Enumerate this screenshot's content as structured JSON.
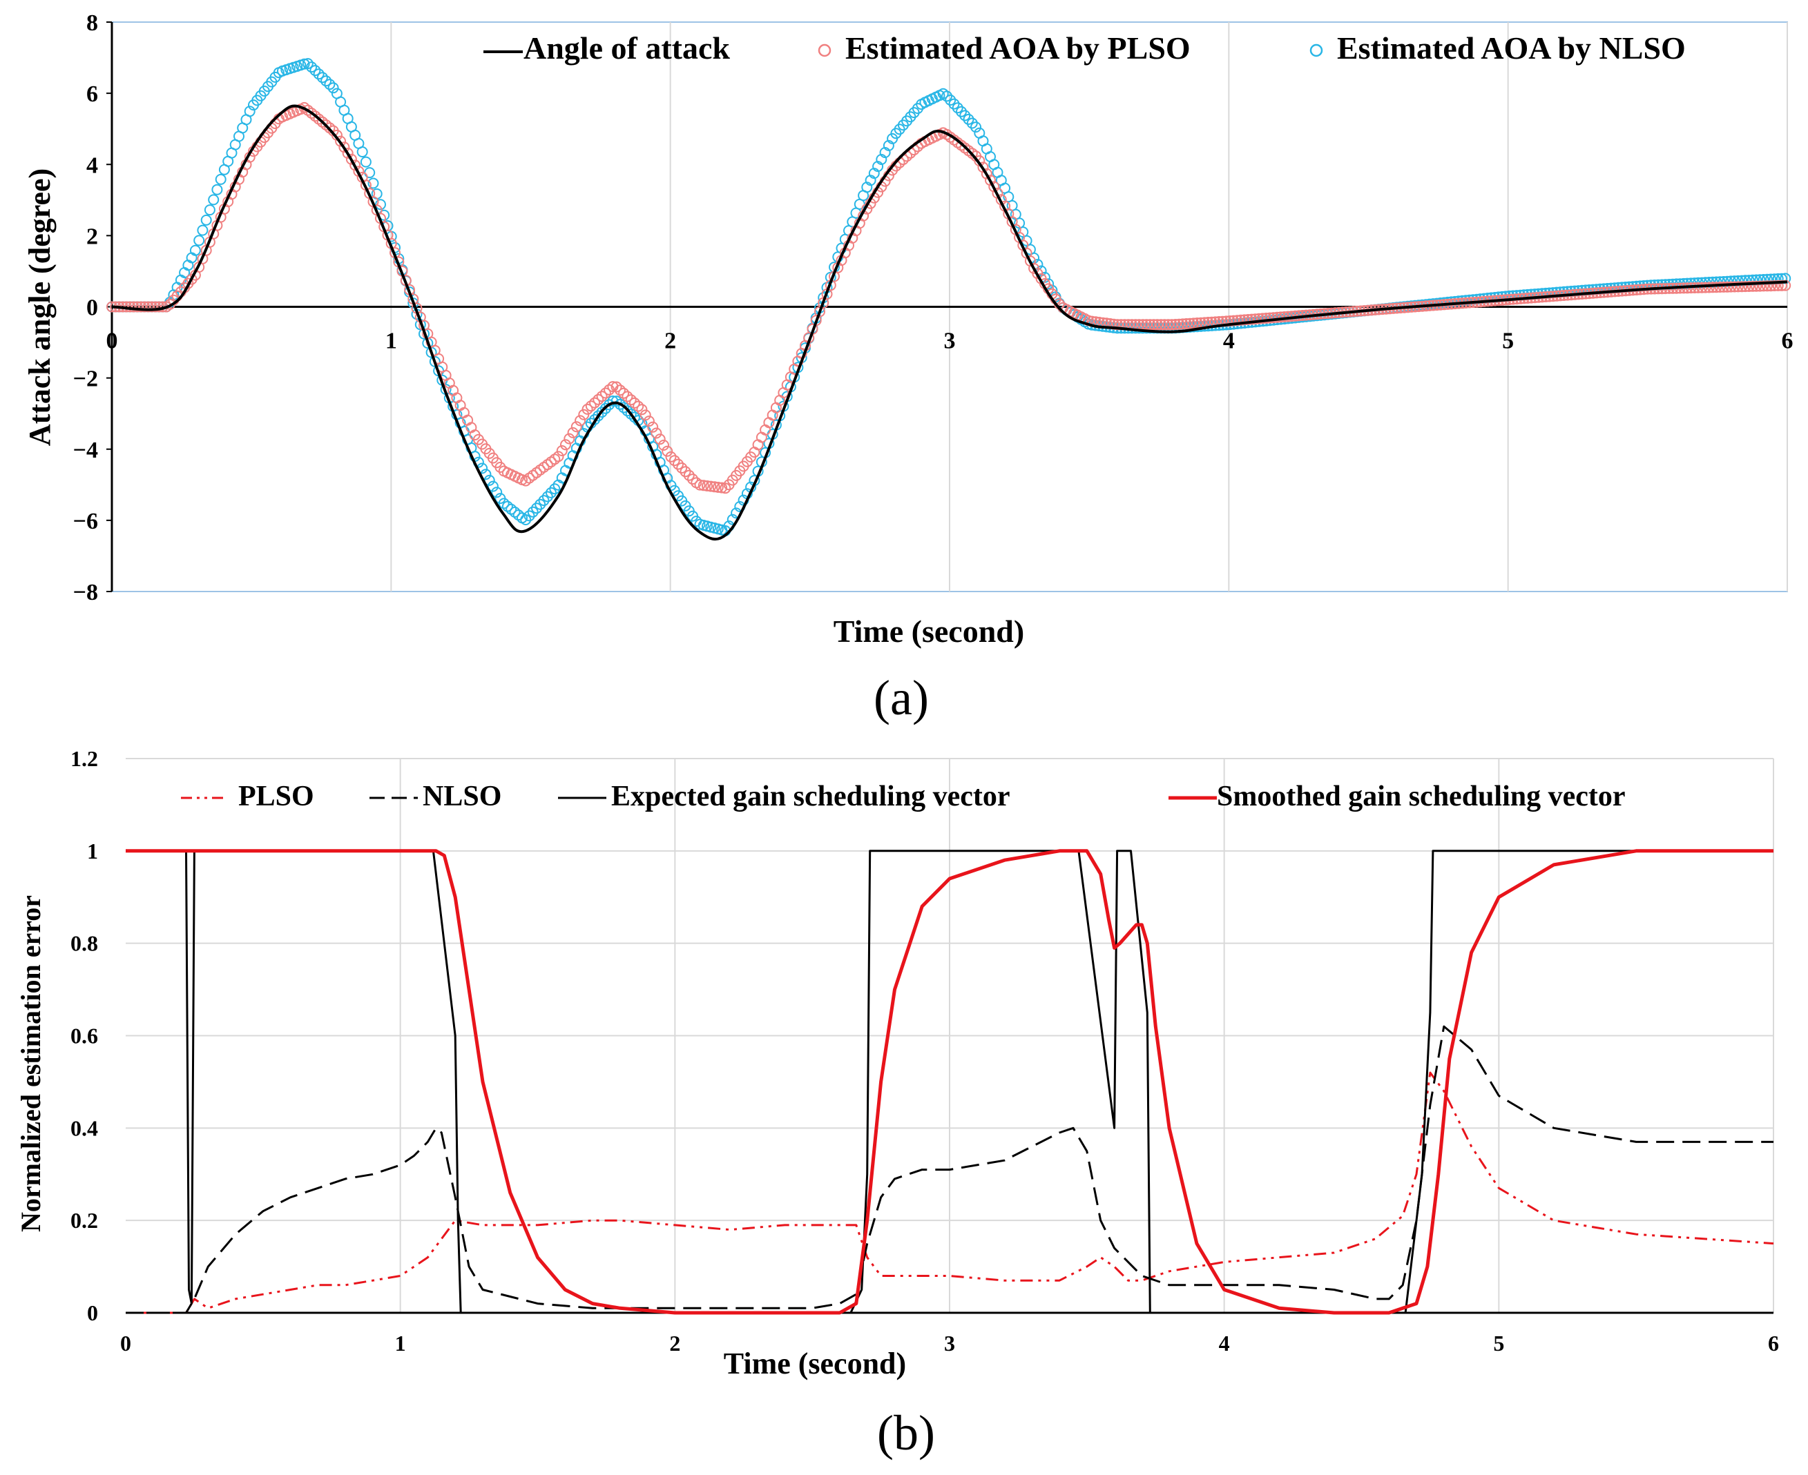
{
  "colors": {
    "black": "#000000",
    "red": "#e8141b",
    "pink_marker": "#f08080",
    "cyan_marker": "#29b6e6",
    "grid": "#d9d9d9",
    "frame": "#9dc3e6"
  },
  "chart_data": [
    {
      "id": "a",
      "type": "line",
      "panel_label": "(a)",
      "title": "",
      "xlabel": "Time (second)",
      "ylabel": "Attack angle (degree)",
      "xlim": [
        0,
        6
      ],
      "ylim": [
        -8,
        8
      ],
      "x_ticks": [
        0,
        1,
        2,
        3,
        4,
        5,
        6
      ],
      "x_tick_labels": [
        "0",
        "1",
        "2",
        "3",
        "4",
        "5",
        "6"
      ],
      "y_ticks": [
        8,
        6,
        4,
        2,
        0,
        -2,
        -4,
        -6,
        -8
      ],
      "y_tick_labels": [
        "8",
        "6",
        "4",
        "2",
        "0",
        "−2",
        "−4",
        "−6",
        "−8"
      ],
      "grid": true,
      "legend_position": "top",
      "series": [
        {
          "name": "Angle of attack",
          "style": "solid",
          "color": "#000000",
          "x": [
            0,
            0.2,
            0.3,
            0.4,
            0.5,
            0.6,
            0.68,
            0.8,
            0.9,
            1.0,
            1.1,
            1.2,
            1.3,
            1.4,
            1.48,
            1.6,
            1.7,
            1.8,
            1.9,
            2.0,
            2.1,
            2.2,
            2.3,
            2.4,
            2.5,
            2.6,
            2.7,
            2.8,
            2.9,
            2.98,
            3.1,
            3.2,
            3.3,
            3.4,
            3.5,
            3.6,
            3.8,
            4.0,
            4.5,
            5.0,
            5.5,
            6.0
          ],
          "y": [
            0,
            0,
            1.0,
            2.8,
            4.4,
            5.4,
            5.6,
            4.8,
            3.5,
            1.7,
            -0.3,
            -2.5,
            -4.4,
            -5.8,
            -6.3,
            -5.3,
            -3.6,
            -2.7,
            -3.5,
            -5.2,
            -6.3,
            -6.4,
            -5.0,
            -3.0,
            -0.9,
            1.2,
            2.8,
            4.0,
            4.7,
            4.9,
            4.1,
            2.7,
            1.1,
            -0.1,
            -0.5,
            -0.6,
            -0.7,
            -0.5,
            -0.1,
            0.2,
            0.5,
            0.7
          ]
        },
        {
          "name": "Estimated AOA by PLSO",
          "style": "circles",
          "color": "#f08080",
          "x": [
            0,
            0.2,
            0.3,
            0.4,
            0.5,
            0.6,
            0.69,
            0.8,
            0.9,
            1.0,
            1.1,
            1.2,
            1.3,
            1.4,
            1.48,
            1.6,
            1.7,
            1.8,
            1.9,
            2.0,
            2.1,
            2.2,
            2.3,
            2.4,
            2.5,
            2.6,
            2.7,
            2.8,
            2.9,
            2.98,
            3.1,
            3.2,
            3.3,
            3.4,
            3.5,
            3.6,
            3.8,
            4.0,
            4.5,
            5.0,
            5.5,
            6.0
          ],
          "y": [
            0,
            0,
            0.9,
            2.7,
            4.3,
            5.3,
            5.6,
            4.9,
            3.6,
            1.8,
            -0.2,
            -2.0,
            -3.6,
            -4.6,
            -4.9,
            -4.2,
            -2.9,
            -2.2,
            -2.9,
            -4.2,
            -5.0,
            -5.1,
            -4.1,
            -2.5,
            -0.8,
            1.1,
            2.7,
            3.9,
            4.6,
            4.9,
            4.2,
            2.8,
            1.1,
            0.0,
            -0.4,
            -0.5,
            -0.5,
            -0.4,
            -0.1,
            0.2,
            0.5,
            0.6
          ]
        },
        {
          "name": "Estimated AOA by NLSO",
          "style": "circles",
          "color": "#29b6e6",
          "x": [
            0,
            0.2,
            0.3,
            0.4,
            0.5,
            0.6,
            0.7,
            0.8,
            0.9,
            1.0,
            1.1,
            1.2,
            1.3,
            1.4,
            1.48,
            1.6,
            1.7,
            1.8,
            1.9,
            2.0,
            2.1,
            2.2,
            2.3,
            2.4,
            2.5,
            2.6,
            2.7,
            2.8,
            2.9,
            2.98,
            3.1,
            3.2,
            3.3,
            3.4,
            3.5,
            3.6,
            3.8,
            4.0,
            4.5,
            5.0,
            5.5,
            6.0
          ],
          "y": [
            0,
            0,
            1.6,
            3.8,
            5.6,
            6.6,
            6.85,
            6.1,
            4.3,
            2.0,
            -0.4,
            -2.4,
            -4.2,
            -5.5,
            -6.0,
            -5.0,
            -3.4,
            -2.6,
            -3.3,
            -5.0,
            -6.1,
            -6.3,
            -4.9,
            -2.9,
            -0.8,
            1.4,
            3.3,
            4.8,
            5.7,
            6.0,
            5.0,
            3.3,
            1.4,
            0.0,
            -0.5,
            -0.6,
            -0.6,
            -0.5,
            -0.1,
            0.3,
            0.6,
            0.8
          ]
        }
      ]
    },
    {
      "id": "b",
      "type": "line",
      "panel_label": "(b)",
      "title": "",
      "xlabel": "Time (second)",
      "ylabel": "Normalized estimation error",
      "xlim": [
        0,
        6
      ],
      "ylim": [
        0,
        1.2
      ],
      "x_ticks": [
        0,
        1,
        2,
        3,
        4,
        5,
        6
      ],
      "x_tick_labels": [
        "0",
        "1",
        "2",
        "3",
        "4",
        "5",
        "6"
      ],
      "y_ticks": [
        1.2,
        1,
        0.8,
        0.6,
        0.4,
        0.2,
        0
      ],
      "y_tick_labels": [
        "1.2",
        "1",
        "0.8",
        "0.6",
        "0.4",
        "0.2",
        "0"
      ],
      "grid": true,
      "legend_position": "top",
      "series": [
        {
          "name": "PLSO",
          "style": "dashdotdot",
          "color": "#e8141b",
          "x": [
            0,
            0.22,
            0.25,
            0.3,
            0.4,
            0.5,
            0.6,
            0.7,
            0.8,
            0.9,
            1.0,
            1.1,
            1.15,
            1.2,
            1.3,
            1.5,
            1.7,
            1.8,
            2.0,
            2.2,
            2.4,
            2.6,
            2.66,
            2.7,
            2.75,
            2.8,
            3.0,
            3.2,
            3.4,
            3.5,
            3.55,
            3.6,
            3.65,
            3.7,
            3.8,
            4.0,
            4.2,
            4.4,
            4.55,
            4.65,
            4.7,
            4.75,
            4.8,
            4.9,
            5.0,
            5.2,
            5.5,
            6.0
          ],
          "y": [
            0,
            0,
            0.03,
            0.01,
            0.03,
            0.04,
            0.05,
            0.06,
            0.06,
            0.07,
            0.08,
            0.12,
            0.16,
            0.2,
            0.19,
            0.19,
            0.2,
            0.2,
            0.19,
            0.18,
            0.19,
            0.19,
            0.19,
            0.12,
            0.08,
            0.08,
            0.08,
            0.07,
            0.07,
            0.1,
            0.12,
            0.1,
            0.07,
            0.07,
            0.09,
            0.11,
            0.12,
            0.13,
            0.16,
            0.21,
            0.3,
            0.52,
            0.48,
            0.36,
            0.27,
            0.2,
            0.17,
            0.15
          ]
        },
        {
          "name": "NLSO",
          "style": "dashed",
          "color": "#000000",
          "x": [
            0,
            0.22,
            0.25,
            0.3,
            0.4,
            0.5,
            0.6,
            0.7,
            0.8,
            0.9,
            1.0,
            1.05,
            1.1,
            1.13,
            1.15,
            1.2,
            1.25,
            1.3,
            1.5,
            1.7,
            2.0,
            2.3,
            2.5,
            2.6,
            2.66,
            2.7,
            2.75,
            2.8,
            2.9,
            3.0,
            3.2,
            3.3,
            3.4,
            3.45,
            3.5,
            3.55,
            3.6,
            3.7,
            3.8,
            4.0,
            4.2,
            4.4,
            4.55,
            4.6,
            4.65,
            4.7,
            4.75,
            4.8,
            4.9,
            5.0,
            5.2,
            5.5,
            6.0
          ],
          "y": [
            0,
            0,
            0.03,
            0.1,
            0.17,
            0.22,
            0.25,
            0.27,
            0.29,
            0.3,
            0.32,
            0.34,
            0.37,
            0.4,
            0.39,
            0.25,
            0.1,
            0.05,
            0.02,
            0.01,
            0.01,
            0.01,
            0.01,
            0.02,
            0.04,
            0.15,
            0.25,
            0.29,
            0.31,
            0.31,
            0.33,
            0.36,
            0.39,
            0.4,
            0.35,
            0.2,
            0.14,
            0.08,
            0.06,
            0.06,
            0.06,
            0.05,
            0.03,
            0.03,
            0.06,
            0.2,
            0.45,
            0.62,
            0.57,
            0.47,
            0.4,
            0.37,
            0.37
          ]
        },
        {
          "name": "Expected gain scheduling vector",
          "style": "solid",
          "color": "#000000",
          "x": [
            0,
            0.22,
            0.23,
            0.24,
            0.25,
            0.26,
            1.1,
            1.12,
            1.2,
            1.21,
            1.22,
            2.64,
            2.68,
            2.7,
            2.71,
            3.47,
            3.6,
            3.61,
            3.63,
            3.66,
            3.72,
            3.73,
            4.66,
            4.72,
            4.75,
            4.76,
            6.0
          ],
          "y": [
            1,
            1,
            0.05,
            0.02,
            1,
            1,
            1,
            1,
            0.6,
            0.2,
            0,
            0,
            0.05,
            0.3,
            1,
            1,
            0.4,
            1,
            1,
            1,
            0.65,
            0,
            0,
            0.3,
            0.65,
            1,
            1
          ]
        },
        {
          "name": "Smoothed gain scheduling vector",
          "style": "solid-thick",
          "color": "#e8141b",
          "x": [
            0,
            1.0,
            1.13,
            1.16,
            1.2,
            1.25,
            1.3,
            1.4,
            1.5,
            1.6,
            1.7,
            1.8,
            2.0,
            2.6,
            2.66,
            2.7,
            2.75,
            2.8,
            2.9,
            3.0,
            3.2,
            3.4,
            3.5,
            3.55,
            3.58,
            3.6,
            3.62,
            3.65,
            3.68,
            3.7,
            3.72,
            3.75,
            3.8,
            3.9,
            4.0,
            4.2,
            4.4,
            4.6,
            4.7,
            4.74,
            4.78,
            4.82,
            4.9,
            5.0,
            5.2,
            5.5,
            6.0
          ],
          "y": [
            1,
            1,
            1,
            0.99,
            0.9,
            0.7,
            0.5,
            0.26,
            0.12,
            0.05,
            0.02,
            0.01,
            0.0,
            0.0,
            0.02,
            0.2,
            0.5,
            0.7,
            0.88,
            0.94,
            0.98,
            1.0,
            1.0,
            0.95,
            0.85,
            0.79,
            0.8,
            0.82,
            0.84,
            0.84,
            0.8,
            0.62,
            0.4,
            0.15,
            0.05,
            0.01,
            0.0,
            0.0,
            0.02,
            0.1,
            0.3,
            0.55,
            0.78,
            0.9,
            0.97,
            1.0,
            1.0
          ]
        }
      ]
    }
  ]
}
